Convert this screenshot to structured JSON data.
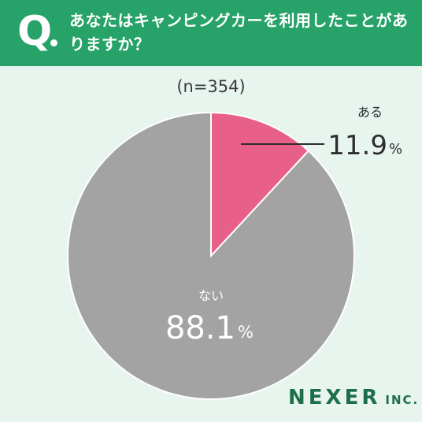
{
  "header": {
    "q_mark": "Q",
    "question": "あなたはキャンピングカーを利用したことがありますか？"
  },
  "sample_label": "(n=354)",
  "colors": {
    "header_bg": "#27a269",
    "page_bg": "#e8f4ee",
    "yes": "#e8608a",
    "no": "#a3a3a3"
  },
  "chart_data": {
    "type": "pie",
    "title": "",
    "slices": [
      {
        "label": "ある",
        "value": 11.9,
        "display": "11.9",
        "unit": "%",
        "color": "#e8608a"
      },
      {
        "label": "ない",
        "value": 88.1,
        "display": "88.1",
        "unit": "%",
        "color": "#a3a3a3"
      }
    ],
    "n": 354
  },
  "logo": {
    "main": "NEXER",
    "sub": "INC."
  }
}
